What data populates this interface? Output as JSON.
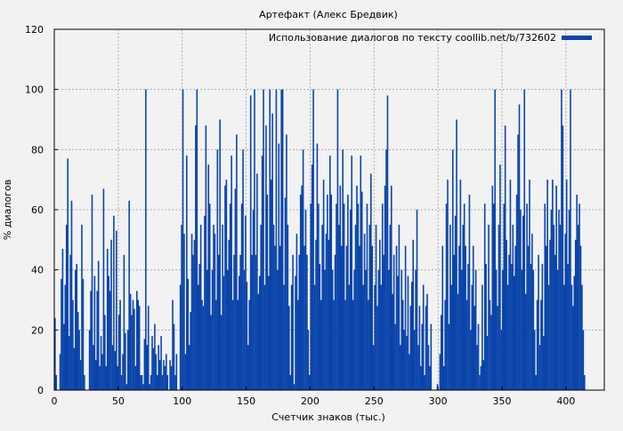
{
  "chart_data": {
    "type": "bar",
    "title": "Артефакт (Алекс Бредвик)",
    "xlabel": "Счетчик знаков (тыс.)",
    "ylabel": "% диалогов",
    "xlim": [
      0,
      430
    ],
    "ylim": [
      0,
      120
    ],
    "x_ticks": [
      "0",
      "50",
      "100",
      "150",
      "200",
      "250",
      "300",
      "350",
      "400"
    ],
    "y_ticks": [
      "0",
      "20",
      "40",
      "60",
      "80",
      "100",
      "120"
    ],
    "grid": true,
    "legend_position": "top-right",
    "bar_color": "#0a44aa",
    "series": [
      {
        "name": "Использование диалогов по тексту coollib.net/b/732602",
        "x_start": 0,
        "x_step": 1,
        "values": [
          24,
          5,
          0,
          0,
          12,
          37,
          47,
          22,
          35,
          55,
          77,
          18,
          45,
          63,
          30,
          14,
          40,
          42,
          26,
          20,
          10,
          55,
          37,
          5,
          0,
          0,
          0,
          20,
          33,
          65,
          15,
          38,
          10,
          33,
          43,
          8,
          18,
          12,
          67,
          25,
          8,
          47,
          38,
          33,
          50,
          15,
          58,
          13,
          53,
          8,
          25,
          30,
          5,
          12,
          45,
          19,
          2,
          20,
          63,
          32,
          25,
          30,
          27,
          8,
          33,
          30,
          28,
          5,
          5,
          2,
          17,
          100,
          15,
          28,
          2,
          5,
          18,
          14,
          22,
          12,
          5,
          15,
          10,
          18,
          5,
          10,
          8,
          12,
          5,
          0,
          10,
          8,
          30,
          22,
          5,
          12,
          0,
          0,
          35,
          55,
          100,
          52,
          12,
          78,
          37,
          15,
          26,
          52,
          45,
          50,
          88,
          100,
          35,
          42,
          55,
          30,
          28,
          58,
          88,
          40,
          75,
          62,
          25,
          40,
          55,
          52,
          30,
          80,
          45,
          90,
          25,
          55,
          38,
          68,
          70,
          40,
          50,
          62,
          78,
          30,
          45,
          67,
          85,
          30,
          38,
          45,
          62,
          80,
          40,
          58,
          36,
          15,
          30,
          98,
          45,
          60,
          100,
          45,
          72,
          32,
          38,
          55,
          78,
          100,
          35,
          88,
          65,
          38,
          100,
          70,
          92,
          55,
          48,
          100,
          40,
          82,
          48,
          100,
          100,
          35,
          64,
          85,
          55,
          28,
          5,
          35,
          45,
          2,
          38,
          52,
          30,
          45,
          65,
          68,
          80,
          48,
          60,
          45,
          20,
          5,
          62,
          75,
          100,
          35,
          50,
          82,
          62,
          42,
          30,
          55,
          70,
          40,
          52,
          65,
          50,
          78,
          65,
          40,
          30,
          45,
          62,
          100,
          55,
          68,
          48,
          80,
          62,
          30,
          48,
          65,
          35,
          60,
          78,
          30,
          40,
          55,
          68,
          62,
          48,
          78,
          66,
          35,
          52,
          40,
          62,
          30,
          55,
          72,
          48,
          15,
          35,
          55,
          28,
          40,
          50,
          35,
          62,
          45,
          68,
          80,
          98,
          40,
          55,
          68,
          32,
          45,
          22,
          48,
          38,
          55,
          15,
          40,
          30,
          20,
          48,
          18,
          38,
          12,
          28,
          36,
          50,
          20,
          40,
          60,
          15,
          28,
          8,
          22,
          35,
          5,
          28,
          32,
          15,
          8,
          22,
          0,
          0,
          0,
          0,
          2,
          0,
          12,
          25,
          48,
          8,
          30,
          62,
          70,
          22,
          55,
          35,
          80,
          45,
          58,
          90,
          32,
          48,
          70,
          40,
          55,
          62,
          48,
          30,
          42,
          65,
          20,
          35,
          48,
          28,
          40,
          15,
          22,
          5,
          8,
          35,
          10,
          62,
          42,
          18,
          55,
          30,
          25,
          68,
          62,
          100,
          40,
          28,
          55,
          75,
          20,
          40,
          62,
          88,
          50,
          35,
          45,
          70,
          42,
          55,
          38,
          48,
          65,
          85,
          95,
          60,
          40,
          58,
          100,
          32,
          62,
          48,
          70,
          42,
          52,
          40,
          20,
          5,
          30,
          45,
          15,
          30,
          42,
          18,
          62,
          48,
          70,
          35,
          50,
          60,
          70,
          55,
          45,
          68,
          40,
          60,
          55,
          100,
          88,
          35,
          52,
          70,
          42,
          60,
          100,
          35,
          28,
          38,
          50,
          65,
          55,
          62,
          48,
          35,
          20,
          5
        ]
      }
    ]
  }
}
